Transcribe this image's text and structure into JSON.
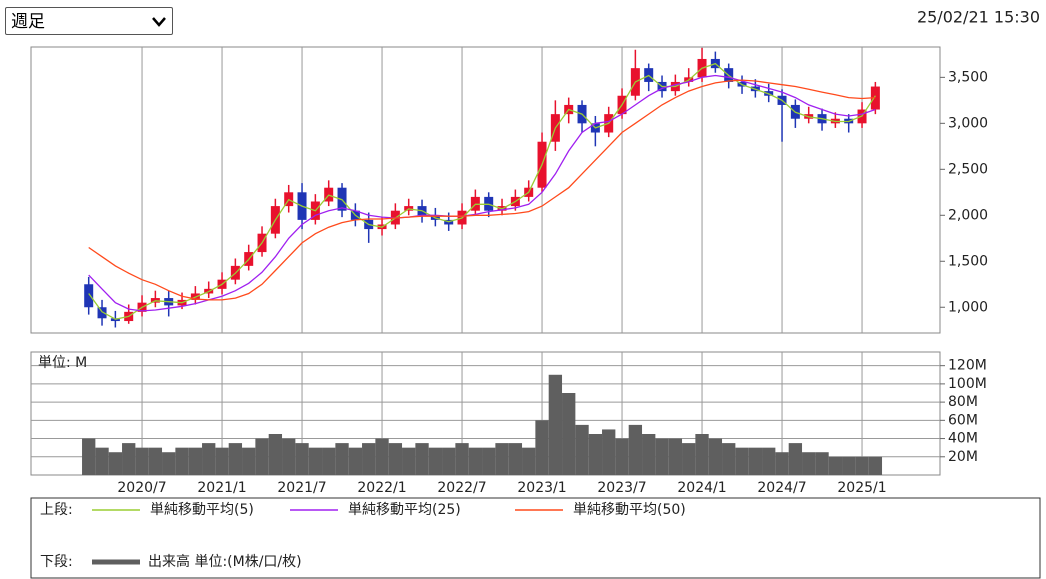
{
  "header": {
    "period_select": "週足",
    "timestamp": "25/02/21 15:30"
  },
  "chart_data": [
    {
      "type": "candlestick",
      "categories": [
        null,
        null,
        null,
        null,
        "2020/7",
        null,
        null,
        null,
        null,
        null,
        "2021/1",
        null,
        null,
        null,
        null,
        null,
        "2021/7",
        null,
        null,
        null,
        null,
        null,
        "2022/1",
        null,
        null,
        null,
        null,
        null,
        "2022/7",
        null,
        null,
        null,
        null,
        null,
        "2023/1",
        null,
        null,
        null,
        null,
        null,
        "2023/7",
        null,
        null,
        null,
        null,
        null,
        "2024/1",
        null,
        null,
        null,
        null,
        null,
        "2024/7",
        null,
        null,
        null,
        null,
        null,
        "2025/1",
        null
      ],
      "open": [
        1250,
        1000,
        880,
        850,
        950,
        1050,
        1100,
        1020,
        1080,
        1150,
        1200,
        1300,
        1450,
        1600,
        1800,
        2100,
        2250,
        1950,
        2150,
        2300,
        2050,
        1950,
        1850,
        1900,
        2050,
        2100,
        2000,
        1950,
        1900,
        2050,
        2200,
        2050,
        2100,
        2200,
        2300,
        2800,
        3100,
        3200,
        3000,
        2900,
        3100,
        3300,
        3600,
        3450,
        3350,
        3450,
        3500,
        3700,
        3600,
        3450,
        3400,
        3350,
        3300,
        3200,
        3050,
        3100,
        3000,
        3050,
        3000,
        3150
      ],
      "high": [
        1330,
        1080,
        960,
        1030,
        1130,
        1180,
        1180,
        1160,
        1230,
        1280,
        1380,
        1530,
        1680,
        1880,
        2180,
        2330,
        2350,
        2230,
        2380,
        2350,
        2130,
        2030,
        1980,
        2130,
        2180,
        2170,
        2080,
        2030,
        2130,
        2280,
        2250,
        2180,
        2280,
        2380,
        2900,
        3250,
        3280,
        3250,
        3080,
        3180,
        3380,
        3800,
        3650,
        3520,
        3530,
        3600,
        3820,
        3780,
        3650,
        3520,
        3480,
        3430,
        3370,
        3260,
        3180,
        3160,
        3120,
        3100,
        3230,
        3450
      ],
      "low": [
        920,
        800,
        780,
        820,
        900,
        1000,
        900,
        980,
        1030,
        1100,
        1140,
        1250,
        1400,
        1550,
        1750,
        2030,
        1850,
        1900,
        2100,
        1980,
        1880,
        1700,
        1780,
        1850,
        2000,
        1920,
        1880,
        1830,
        1850,
        2000,
        1980,
        2000,
        2050,
        2150,
        2250,
        2700,
        3000,
        2900,
        2750,
        2850,
        3050,
        3250,
        3350,
        3280,
        3300,
        3400,
        3450,
        3550,
        3380,
        3320,
        3280,
        3230,
        2800,
        2950,
        3000,
        2920,
        2950,
        2900,
        2950,
        3100
      ],
      "close": [
        1000,
        880,
        850,
        950,
        1050,
        1100,
        1020,
        1080,
        1150,
        1200,
        1300,
        1450,
        1600,
        1800,
        2100,
        2250,
        1950,
        2150,
        2300,
        2050,
        1950,
        1850,
        1900,
        2050,
        2100,
        2000,
        1950,
        1900,
        2050,
        2200,
        2050,
        2100,
        2200,
        2300,
        2800,
        3100,
        3200,
        3000,
        2900,
        3100,
        3300,
        3600,
        3450,
        3350,
        3450,
        3500,
        3700,
        3600,
        3450,
        3400,
        3350,
        3300,
        3200,
        3050,
        3100,
        3000,
        3050,
        3000,
        3150,
        3400
      ],
      "up_color": "#e8112d",
      "down_color": "#1f35b5",
      "series": [
        {
          "name": "単純移動平均(5)",
          "color": "#9acd32",
          "values": [
            1150,
            950,
            870,
            900,
            1000,
            1070,
            1060,
            1050,
            1110,
            1170,
            1250,
            1370,
            1520,
            1700,
            1950,
            2170,
            2100,
            2050,
            2220,
            2170,
            2000,
            1900,
            1870,
            1970,
            2070,
            2050,
            1970,
            1930,
            1970,
            2120,
            2120,
            2070,
            2150,
            2250,
            2550,
            2950,
            3150,
            3100,
            2950,
            3000,
            3200,
            3450,
            3520,
            3400,
            3400,
            3470,
            3600,
            3650,
            3520,
            3420,
            3370,
            3320,
            3250,
            3120,
            3070,
            3050,
            3020,
            3020,
            3080,
            3300
          ]
        },
        {
          "name": "単純移動平均(25)",
          "color": "#a020f0",
          "values": [
            1350,
            1200,
            1050,
            980,
            960,
            970,
            990,
            1010,
            1040,
            1080,
            1120,
            1180,
            1260,
            1380,
            1550,
            1750,
            1900,
            2000,
            2050,
            2080,
            2050,
            2000,
            1980,
            1970,
            1980,
            2000,
            2000,
            1990,
            1990,
            2010,
            2040,
            2060,
            2080,
            2120,
            2250,
            2450,
            2700,
            2900,
            3000,
            3020,
            3100,
            3200,
            3300,
            3380,
            3420,
            3450,
            3500,
            3520,
            3500,
            3460,
            3420,
            3380,
            3340,
            3280,
            3200,
            3150,
            3100,
            3080,
            3100,
            3150
          ]
        },
        {
          "name": "単純移動平均(50)",
          "color": "#ff4a1c",
          "values": [
            1650,
            1550,
            1450,
            1370,
            1300,
            1250,
            1180,
            1120,
            1090,
            1080,
            1080,
            1100,
            1150,
            1250,
            1400,
            1550,
            1700,
            1800,
            1870,
            1920,
            1950,
            1960,
            1960,
            1970,
            1980,
            1990,
            1990,
            1990,
            1990,
            2000,
            2000,
            2010,
            2020,
            2040,
            2100,
            2200,
            2300,
            2450,
            2600,
            2750,
            2900,
            3000,
            3100,
            3200,
            3280,
            3350,
            3400,
            3440,
            3460,
            3470,
            3460,
            3440,
            3420,
            3400,
            3370,
            3340,
            3310,
            3280,
            3270,
            3280
          ]
        }
      ],
      "ylim": [
        720,
        3830
      ],
      "yticks": [
        {
          "value": 1000,
          "label": "1,000"
        },
        {
          "value": 1500,
          "label": "1,500"
        },
        {
          "value": 2000,
          "label": "2,000"
        },
        {
          "value": 2500,
          "label": "2,500"
        },
        {
          "value": 3000,
          "label": "3,000"
        },
        {
          "value": 3500,
          "label": "3,500"
        }
      ],
      "grid": "x"
    },
    {
      "type": "bar",
      "unit_label": "単位: M",
      "series": [
        {
          "name": "出来高 単位:(M株/口/枚)",
          "color": "#5f5f5f",
          "values": [
            40,
            30,
            25,
            35,
            30,
            30,
            25,
            30,
            30,
            35,
            30,
            35,
            30,
            40,
            45,
            40,
            35,
            30,
            30,
            35,
            30,
            35,
            40,
            35,
            30,
            35,
            30,
            30,
            35,
            30,
            30,
            35,
            35,
            30,
            60,
            110,
            90,
            55,
            45,
            50,
            40,
            55,
            45,
            40,
            40,
            35,
            45,
            40,
            35,
            30,
            30,
            30,
            25,
            35,
            25,
            25,
            20,
            20,
            20,
            20
          ]
        }
      ],
      "ylim": [
        0,
        135
      ],
      "yticks": [
        {
          "value": 20,
          "label": "20M"
        },
        {
          "value": 40,
          "label": "40M"
        },
        {
          "value": 60,
          "label": "60M"
        },
        {
          "value": 80,
          "label": "80M"
        },
        {
          "value": 100,
          "label": "100M"
        },
        {
          "value": 120,
          "label": "120M"
        }
      ],
      "grid": "both"
    }
  ],
  "legend": {
    "upper_label": "上段:",
    "lower_label": "下段:"
  }
}
